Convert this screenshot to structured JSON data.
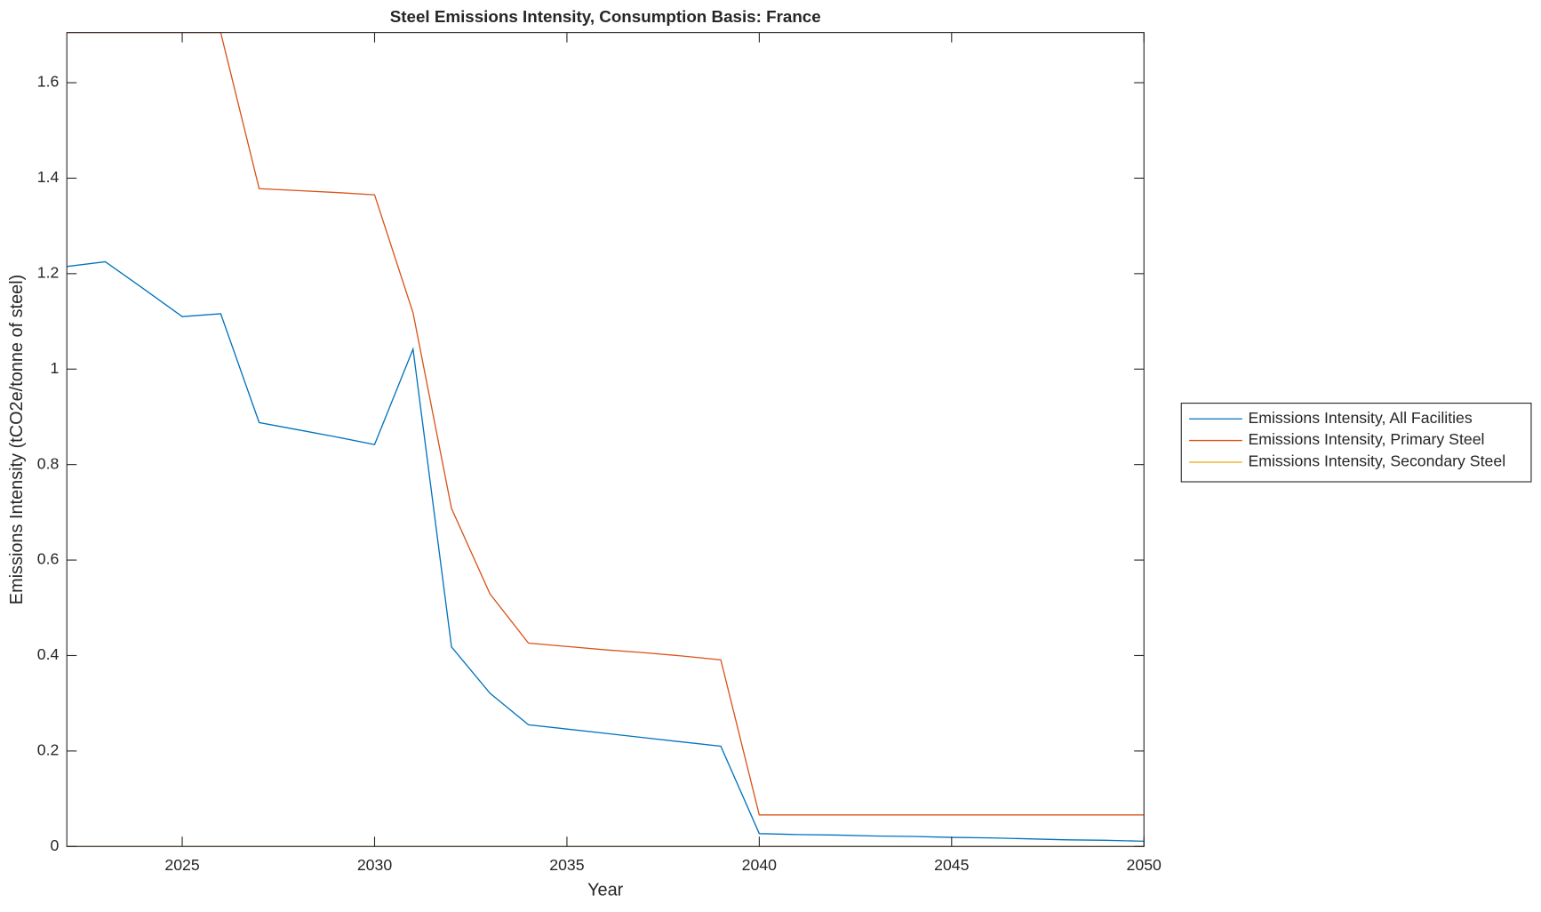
{
  "chart_data": {
    "type": "line",
    "title": "Steel Emissions Intensity, Consumption Basis: France",
    "x_label": "Year",
    "y_label": "Emissions Intensity (tCO2e/tonne of steel)",
    "x": [
      2022,
      2023,
      2024,
      2025,
      2026,
      2027,
      2028,
      2029,
      2030,
      2031,
      2032,
      2033,
      2034,
      2035,
      2036,
      2037,
      2038,
      2039,
      2040,
      2041,
      2042,
      2043,
      2044,
      2045,
      2046,
      2047,
      2048,
      2049,
      2050
    ],
    "series": [
      {
        "name": "Emissions Intensity, All Facilities",
        "color": "#0072bd",
        "values": [
          1.215,
          1.225,
          1.168,
          1.11,
          1.116,
          0.888,
          0.873,
          0.858,
          0.842,
          1.042,
          0.418,
          0.321,
          0.255,
          0.246,
          0.237,
          0.228,
          0.219,
          0.21,
          0.027,
          0.025,
          0.024,
          0.022,
          0.021,
          0.019,
          0.018,
          0.016,
          0.014,
          0.013,
          0.011
        ]
      },
      {
        "name": "Emissions Intensity, Primary Steel",
        "color": "#d95319",
        "values": [
          1.705,
          1.705,
          1.705,
          1.705,
          1.705,
          1.378,
          1.374,
          1.37,
          1.365,
          1.118,
          0.708,
          0.529,
          0.426,
          0.419,
          0.412,
          0.406,
          0.399,
          0.391,
          0.066,
          0.066,
          0.066,
          0.066,
          0.066,
          0.066,
          0.066,
          0.066,
          0.066,
          0.066,
          0.066
        ]
      },
      {
        "name": "Emissions Intensity, Secondary Steel",
        "color": "#edb120",
        "values": [
          0,
          0,
          0,
          0,
          0,
          0,
          0,
          0,
          0,
          0,
          0,
          0,
          0,
          0,
          0,
          0,
          0,
          0,
          0,
          0,
          0,
          0,
          0,
          0,
          0,
          0,
          0,
          0,
          0
        ]
      }
    ],
    "xlim": [
      2022,
      2050
    ],
    "xticks": [
      2025,
      2030,
      2035,
      2040,
      2045,
      2050
    ],
    "ylim": [
      0,
      1.705
    ],
    "yticks": [
      0,
      0.2,
      0.4,
      0.6,
      0.8,
      1,
      1.2,
      1.4,
      1.6
    ],
    "grid": false,
    "legend": "right"
  }
}
